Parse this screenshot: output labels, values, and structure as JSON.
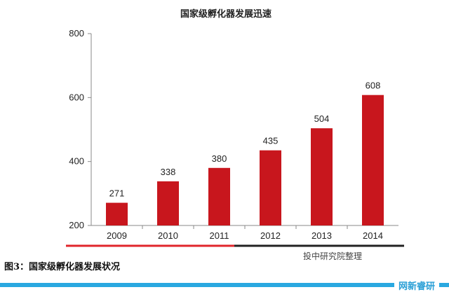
{
  "chart_data": {
    "type": "bar",
    "title": "国家级孵化器发展迅速",
    "categories": [
      "2009",
      "2010",
      "2011",
      "2012",
      "2013",
      "2014"
    ],
    "values": [
      271,
      338,
      380,
      435,
      504,
      608
    ],
    "data_labels": [
      "271",
      "338",
      "380",
      "435",
      "504",
      "608"
    ],
    "ylim": [
      200,
      800
    ],
    "yticks": [
      "200",
      "400",
      "600",
      "800"
    ],
    "ytick_values": [
      200,
      400,
      600,
      800
    ],
    "bar_color": "#c8161d",
    "grid": false,
    "xlabel": "",
    "ylabel": ""
  },
  "source": "投中研究院整理",
  "caption": "图3：国家级孵化器发展状况",
  "brand": "网新睿研",
  "colors": {
    "accent_red": "#e0252b",
    "divider_dark": "#222222",
    "footer_blue": "#29a8e0"
  }
}
